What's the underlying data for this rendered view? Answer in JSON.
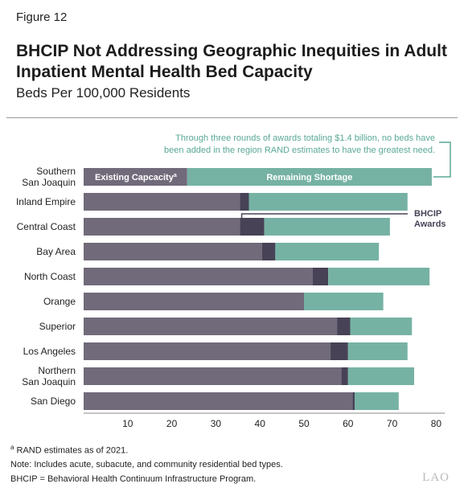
{
  "figure_label": "Figure 12",
  "title": "BHCIP Not Addressing Geographic Inequities in Adult Inpatient Mental Health Bed Capacity",
  "subtitle": "Beds Per 100,000 Residents",
  "chart_data": {
    "type": "bar",
    "orientation": "horizontal",
    "stacked": true,
    "categories": [
      "Southern San Joaquin",
      "Inland Empire",
      "Central Coast",
      "Bay Area",
      "North Coast",
      "Orange",
      "Superior",
      "Los Angeles",
      "Northern San Joaquin",
      "San Diego"
    ],
    "category_lines": [
      [
        "Southern",
        "San Joaquin"
      ],
      [
        "Inland Empire"
      ],
      [
        "Central Coast"
      ],
      [
        "Bay Area"
      ],
      [
        "North Coast"
      ],
      [
        "Orange"
      ],
      [
        "Superior"
      ],
      [
        "Los Angeles"
      ],
      [
        "Northern",
        "San Joaquin"
      ],
      [
        "San Diego"
      ]
    ],
    "series": [
      {
        "name": "Existing Capacity",
        "values": [
          23.5,
          35.5,
          35.5,
          40.5,
          52,
          50,
          57.5,
          56,
          58.5,
          61
        ]
      },
      {
        "name": "BHCIP Awards",
        "values": [
          0,
          2,
          5.5,
          3,
          3.5,
          0,
          3,
          4,
          1.5,
          0.5
        ]
      },
      {
        "name": "Remaining Shortage",
        "values": [
          55.5,
          36,
          28.5,
          23.5,
          23,
          18,
          14,
          13.5,
          15,
          10
        ]
      }
    ],
    "xlim": [
      0,
      82
    ],
    "xticks": [
      10,
      20,
      30,
      40,
      50,
      60,
      70,
      80
    ],
    "grid": false,
    "colors": {
      "existing": "#716a7a",
      "awards": "#474256",
      "shortage": "#76b2a4",
      "annotation": "#5aa896"
    },
    "inbar_labels": {
      "existing": "Existing Capcacity",
      "existing_sup": "a",
      "shortage": "Remaining Shortage"
    },
    "awards_label": [
      "BHCIP",
      "Awards"
    ],
    "annotation_lines": [
      "Through three rounds of awards totaling $1.4 billion, no beds have",
      "been added in the region RAND estimates to have the greatest need."
    ]
  },
  "footnotes": {
    "a": "RAND estimates as of 2021.",
    "a_marker": "a",
    "note": "Note: Includes acute, subacute, and community residential bed types.",
    "abbrev": "BHCIP = Behavioral Health Continuum Infrastructure Program."
  },
  "logo": "LAO"
}
